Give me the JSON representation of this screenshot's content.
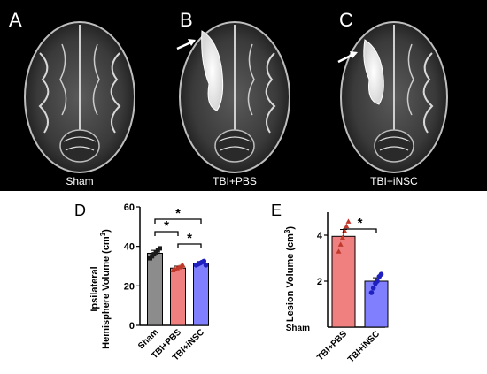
{
  "panels": {
    "a": {
      "letter": "A",
      "caption": "Sham"
    },
    "b": {
      "letter": "B",
      "caption": "TBI+PBS"
    },
    "c": {
      "letter": "C",
      "caption": "TBI+iNSC"
    }
  },
  "chart_data": [
    {
      "type": "bar",
      "panel_letter": "D",
      "categories": [
        "Sham",
        "TBI+PBS",
        "TBI+iNSC"
      ],
      "values": [
        36.5,
        29.0,
        31.5
      ],
      "errors": [
        1.5,
        1.0,
        0.8
      ],
      "points": [
        [
          34,
          35,
          36,
          37,
          38,
          39
        ],
        [
          28,
          28.5,
          29,
          29.5,
          30,
          30.5
        ],
        [
          30.5,
          31,
          31.5,
          32,
          32.5,
          30.5
        ]
      ],
      "bar_colors": [
        "#8c8c8c",
        "#f08080",
        "#8080ff"
      ],
      "point_colors": [
        "#1a1a1a",
        "#c0392b",
        "#2020c0"
      ],
      "point_shapes": [
        "square",
        "triangle",
        "circle"
      ],
      "ylabel_line1": "Ipsilateral",
      "ylabel_line2": "Hemisphere Volume (cm",
      "ylabel_sup": "3",
      "ylabel_close": ")",
      "ylim": [
        0,
        60
      ],
      "yticks": [
        "0",
        "20",
        "40",
        "60"
      ],
      "ytick_values": [
        0,
        20,
        40,
        60
      ],
      "sig_marker": "*",
      "comparisons": [
        {
          "from": 0,
          "to": 2,
          "level": 2
        },
        {
          "from": 0,
          "to": 1,
          "level": 1
        },
        {
          "from": 1,
          "to": 2,
          "level": 0
        }
      ]
    },
    {
      "type": "bar",
      "panel_letter": "E",
      "categories": [
        "TBI+PBS",
        "TBI+iNSC"
      ],
      "values": [
        3.95,
        2.0
      ],
      "errors": [
        0.3,
        0.15
      ],
      "points": [
        [
          3.3,
          3.6,
          3.9,
          4.2,
          4.4,
          4.6
        ],
        [
          1.5,
          1.7,
          1.9,
          2.0,
          2.2,
          2.3
        ]
      ],
      "bar_colors": [
        "#f08080",
        "#8080ff"
      ],
      "point_colors": [
        "#c0392b",
        "#2020c0"
      ],
      "point_shapes": [
        "triangle",
        "circle"
      ],
      "ylabel_line1": "Lesion Volume (cm",
      "ylabel_sup": "3",
      "ylabel_close": ")",
      "ylim": [
        0,
        5
      ],
      "yticks": [
        "2",
        "4"
      ],
      "ytick_values": [
        2,
        4
      ],
      "baseline_label": "Sham",
      "sig_marker": "*",
      "comparisons": [
        {
          "from": 0,
          "to": 1,
          "level": 0
        }
      ]
    }
  ]
}
